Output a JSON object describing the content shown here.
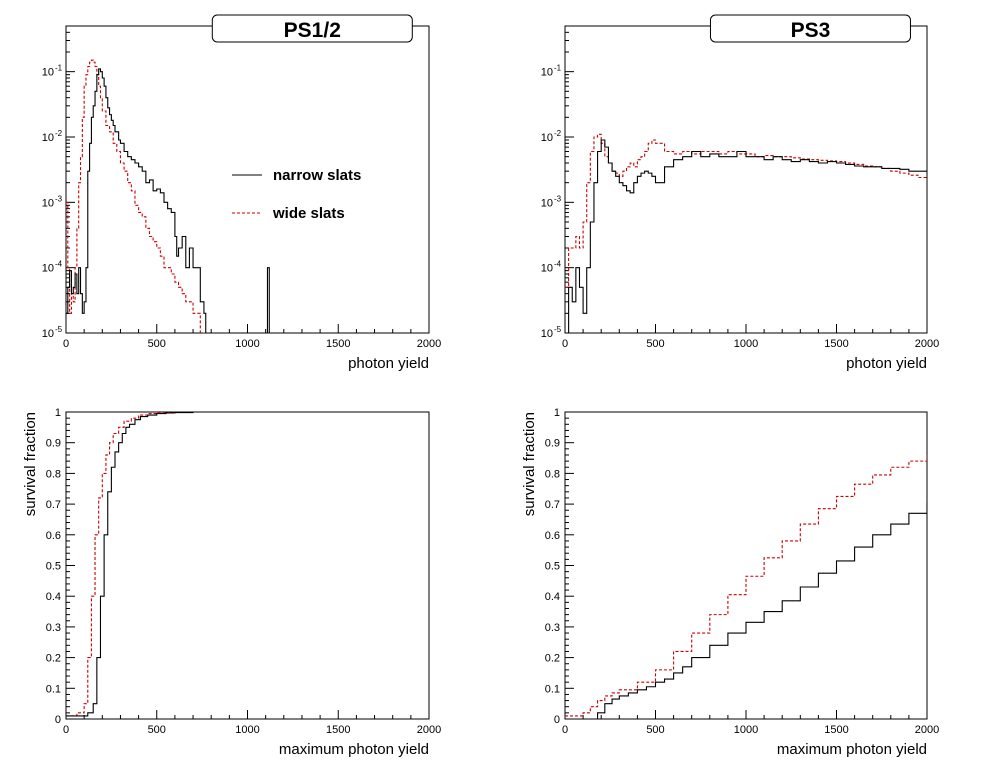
{
  "chart_data": [
    {
      "type": "line",
      "panel": "top-left",
      "title": "PS1/2",
      "xlabel": "photon yield",
      "ylabel": "",
      "xlim": [
        0,
        2000
      ],
      "ylim": [
        1e-05,
        0.5
      ],
      "yscale": "log",
      "xticks": [
        0,
        500,
        1000,
        1500,
        2000
      ],
      "yticks": [
        1e-05,
        0.0001,
        0.001,
        0.01,
        0.1
      ],
      "ytick_labels": [
        {
          "base": "10",
          "exp": "-5"
        },
        {
          "base": "10",
          "exp": "-4"
        },
        {
          "base": "10",
          "exp": "-3"
        },
        {
          "base": "10",
          "exp": "-2"
        },
        {
          "base": "10",
          "exp": "-1"
        }
      ],
      "legend": {
        "position": "center-right",
        "entries": [
          {
            "label": "narrow slats",
            "color": "#000000",
            "style": "solid"
          },
          {
            "label": "wide slats",
            "color": "#cc0000",
            "style": "dashed"
          }
        ]
      },
      "series": [
        {
          "name": "narrow slats",
          "color": "#000000",
          "style": "solid",
          "x": [
            0,
            10,
            20,
            30,
            40,
            50,
            60,
            70,
            80,
            90,
            100,
            110,
            120,
            130,
            140,
            150,
            160,
            170,
            180,
            190,
            200,
            210,
            220,
            230,
            240,
            250,
            260,
            270,
            280,
            290,
            300,
            320,
            340,
            360,
            380,
            400,
            420,
            440,
            460,
            480,
            500,
            520,
            540,
            560,
            580,
            600,
            610,
            620,
            640,
            660,
            680,
            700,
            720,
            740,
            760,
            770,
            790,
            1110,
            1120,
            2000
          ],
          "y": [
            2e-05,
            5e-05,
            9e-05,
            4e-05,
            5e-05,
            8e-05,
            4e-05,
            0.0001,
            4e-05,
            2e-05,
            3e-05,
            0.0001,
            0.003,
            0.008,
            0.02,
            0.03,
            0.05,
            0.09,
            0.11,
            0.1,
            0.08,
            0.06,
            0.04,
            0.028,
            0.022,
            0.018,
            0.015,
            0.012,
            0.012,
            0.009,
            0.008,
            0.006,
            0.005,
            0.0045,
            0.004,
            0.0035,
            0.003,
            0.002,
            0.0022,
            0.0015,
            0.0016,
            0.0014,
            0.001,
            0.0008,
            0.0007,
            0.0003,
            0.00015,
            0.0002,
            0.0003,
            0.0001,
            0.0002,
            0.0001,
            0.0001,
            3e-05,
            2e-05,
            1e-05,
            1e-05,
            0.0001,
            1e-05,
            1e-05
          ]
        },
        {
          "name": "wide slats",
          "color": "#cc0000",
          "style": "dashed",
          "x": [
            0,
            10,
            20,
            30,
            40,
            50,
            60,
            70,
            80,
            90,
            100,
            110,
            120,
            130,
            140,
            150,
            160,
            170,
            180,
            190,
            200,
            220,
            240,
            260,
            280,
            300,
            320,
            340,
            360,
            380,
            400,
            420,
            440,
            460,
            480,
            500,
            520,
            540,
            560,
            580,
            600,
            620,
            640,
            660,
            680,
            700,
            720,
            740,
            760,
            780,
            2000
          ],
          "y": [
            0.001,
            0.0001,
            2e-05,
            4e-05,
            3e-05,
            0.0001,
            0.0004,
            0.002,
            0.005,
            0.02,
            0.06,
            0.09,
            0.12,
            0.14,
            0.15,
            0.14,
            0.12,
            0.09,
            0.06,
            0.04,
            0.025,
            0.015,
            0.012,
            0.008,
            0.006,
            0.004,
            0.003,
            0.002,
            0.0015,
            0.0009,
            0.0007,
            0.0006,
            0.0004,
            0.0003,
            0.00025,
            0.0002,
            0.00015,
            0.0001,
            0.0001,
            8e-05,
            6e-05,
            5e-05,
            4e-05,
            3e-05,
            3e-05,
            2e-05,
            2e-05,
            1e-05,
            1e-05,
            1e-05,
            1e-05
          ]
        }
      ]
    },
    {
      "type": "line",
      "panel": "top-right",
      "title": "PS3",
      "xlabel": "photon yield",
      "ylabel": "",
      "xlim": [
        0,
        2000
      ],
      "ylim": [
        1e-05,
        0.5
      ],
      "yscale": "log",
      "xticks": [
        0,
        500,
        1000,
        1500,
        2000
      ],
      "yticks": [
        1e-05,
        0.0001,
        0.001,
        0.01,
        0.1
      ],
      "ytick_labels": [
        {
          "base": "10",
          "exp": "-5"
        },
        {
          "base": "10",
          "exp": "-4"
        },
        {
          "base": "10",
          "exp": "-3"
        },
        {
          "base": "10",
          "exp": "-2"
        },
        {
          "base": "10",
          "exp": "-1"
        }
      ],
      "series": [
        {
          "name": "narrow slats",
          "color": "#000000",
          "style": "solid",
          "x": [
            0,
            20,
            40,
            60,
            80,
            100,
            120,
            140,
            160,
            180,
            200,
            220,
            240,
            260,
            280,
            300,
            320,
            340,
            360,
            380,
            400,
            420,
            440,
            460,
            480,
            500,
            550,
            600,
            650,
            700,
            750,
            800,
            850,
            900,
            950,
            1000,
            1050,
            1100,
            1150,
            1200,
            1250,
            1300,
            1350,
            1400,
            1450,
            1500,
            1550,
            1600,
            1650,
            1700,
            1750,
            1800,
            1850,
            1900,
            1950,
            2000
          ],
          "y": [
            1e-05,
            5e-05,
            3e-05,
            0.0001,
            5e-05,
            2e-05,
            0.0001,
            0.0005,
            0.002,
            0.006,
            0.009,
            0.007,
            0.004,
            0.003,
            0.0025,
            0.002,
            0.0018,
            0.0015,
            0.0014,
            0.002,
            0.0025,
            0.0028,
            0.003,
            0.0028,
            0.0025,
            0.002,
            0.0035,
            0.0045,
            0.005,
            0.006,
            0.005,
            0.0055,
            0.005,
            0.005,
            0.006,
            0.005,
            0.005,
            0.0045,
            0.005,
            0.0045,
            0.0042,
            0.0045,
            0.0042,
            0.004,
            0.0042,
            0.004,
            0.0038,
            0.0036,
            0.0035,
            0.0035,
            0.0033,
            0.0033,
            0.0032,
            0.003,
            0.003,
            0.0028
          ]
        },
        {
          "name": "wide slats",
          "color": "#cc0000",
          "style": "dashed",
          "x": [
            0,
            20,
            40,
            60,
            80,
            100,
            120,
            140,
            160,
            180,
            200,
            220,
            240,
            260,
            280,
            300,
            320,
            340,
            360,
            380,
            400,
            420,
            440,
            460,
            480,
            500,
            550,
            600,
            650,
            700,
            750,
            800,
            850,
            900,
            950,
            1000,
            1050,
            1100,
            1150,
            1200,
            1250,
            1300,
            1350,
            1400,
            1450,
            1500,
            1550,
            1600,
            1650,
            1700,
            1750,
            1800,
            1850,
            1900,
            1950,
            2000
          ],
          "y": [
            5e-05,
            0.0002,
            0.0002,
            0.0003,
            0.0002,
            0.0005,
            0.002,
            0.006,
            0.01,
            0.011,
            0.008,
            0.005,
            0.004,
            0.003,
            0.0028,
            0.0025,
            0.003,
            0.0035,
            0.004,
            0.0035,
            0.0045,
            0.005,
            0.006,
            0.008,
            0.009,
            0.008,
            0.006,
            0.0055,
            0.006,
            0.0055,
            0.006,
            0.006,
            0.0055,
            0.006,
            0.0055,
            0.0055,
            0.005,
            0.0052,
            0.005,
            0.005,
            0.0048,
            0.0046,
            0.0045,
            0.0044,
            0.0043,
            0.0042,
            0.004,
            0.0038,
            0.0036,
            0.0035,
            0.0033,
            0.003,
            0.0028,
            0.0026,
            0.0024,
            0.0022
          ]
        }
      ]
    },
    {
      "type": "line",
      "panel": "bottom-left",
      "title": "",
      "xlabel": "maximum photon yield",
      "ylabel": "survival fraction",
      "xlim": [
        0,
        2000
      ],
      "ylim": [
        0,
        1
      ],
      "yscale": "linear",
      "xticks": [
        0,
        500,
        1000,
        1500,
        2000
      ],
      "yticks": [
        0,
        0.1,
        0.2,
        0.3,
        0.4,
        0.5,
        0.6,
        0.7,
        0.8,
        0.9,
        1
      ],
      "series": [
        {
          "name": "narrow slats",
          "color": "#000000",
          "style": "solid",
          "x": [
            0,
            60,
            120,
            150,
            170,
            190,
            210,
            230,
            250,
            270,
            290,
            310,
            330,
            350,
            380,
            410,
            450,
            500,
            550,
            600,
            700,
            2000
          ],
          "y": [
            0.01,
            0.01,
            0.02,
            0.05,
            0.2,
            0.4,
            0.6,
            0.74,
            0.82,
            0.87,
            0.9,
            0.93,
            0.95,
            0.96,
            0.975,
            0.985,
            0.99,
            0.995,
            0.997,
            0.998,
            1.0,
            1.0
          ]
        },
        {
          "name": "wide slats",
          "color": "#cc0000",
          "style": "dashed",
          "x": [
            0,
            60,
            100,
            120,
            140,
            160,
            180,
            200,
            220,
            240,
            260,
            290,
            320,
            360,
            400,
            450,
            500,
            600,
            2000
          ],
          "y": [
            0.01,
            0.02,
            0.05,
            0.2,
            0.4,
            0.6,
            0.72,
            0.8,
            0.86,
            0.9,
            0.93,
            0.95,
            0.97,
            0.98,
            0.99,
            0.995,
            0.998,
            1.0,
            1.0
          ]
        }
      ]
    },
    {
      "type": "line",
      "panel": "bottom-right",
      "title": "",
      "xlabel": "maximum photon yield",
      "ylabel": "survival fraction",
      "xlim": [
        0,
        2000
      ],
      "ylim": [
        0,
        1
      ],
      "yscale": "linear",
      "xticks": [
        0,
        500,
        1000,
        1500,
        2000
      ],
      "yticks": [
        0,
        0.1,
        0.2,
        0.3,
        0.4,
        0.5,
        0.6,
        0.7,
        0.8,
        0.9,
        1
      ],
      "series": [
        {
          "name": "narrow slats",
          "color": "#000000",
          "style": "solid",
          "x": [
            150,
            180,
            220,
            260,
            300,
            350,
            400,
            450,
            500,
            550,
            600,
            650,
            700,
            800,
            900,
            1000,
            1100,
            1200,
            1300,
            1400,
            1500,
            1600,
            1700,
            1800,
            1900,
            2000
          ],
          "y": [
            0.0,
            0.02,
            0.05,
            0.065,
            0.075,
            0.085,
            0.095,
            0.105,
            0.12,
            0.13,
            0.15,
            0.17,
            0.2,
            0.24,
            0.28,
            0.315,
            0.35,
            0.385,
            0.43,
            0.475,
            0.515,
            0.56,
            0.6,
            0.635,
            0.67,
            0.705
          ]
        },
        {
          "name": "wide slats",
          "color": "#cc0000",
          "style": "dashed",
          "x": [
            0,
            50,
            100,
            140,
            180,
            220,
            260,
            300,
            400,
            500,
            600,
            700,
            800,
            900,
            1000,
            1100,
            1200,
            1300,
            1400,
            1500,
            1600,
            1700,
            1800,
            1900,
            2000
          ],
          "y": [
            0.01,
            0.01,
            0.02,
            0.04,
            0.06,
            0.075,
            0.085,
            0.095,
            0.12,
            0.16,
            0.22,
            0.28,
            0.34,
            0.405,
            0.465,
            0.525,
            0.58,
            0.635,
            0.685,
            0.725,
            0.765,
            0.795,
            0.82,
            0.84,
            0.86
          ]
        }
      ]
    }
  ]
}
